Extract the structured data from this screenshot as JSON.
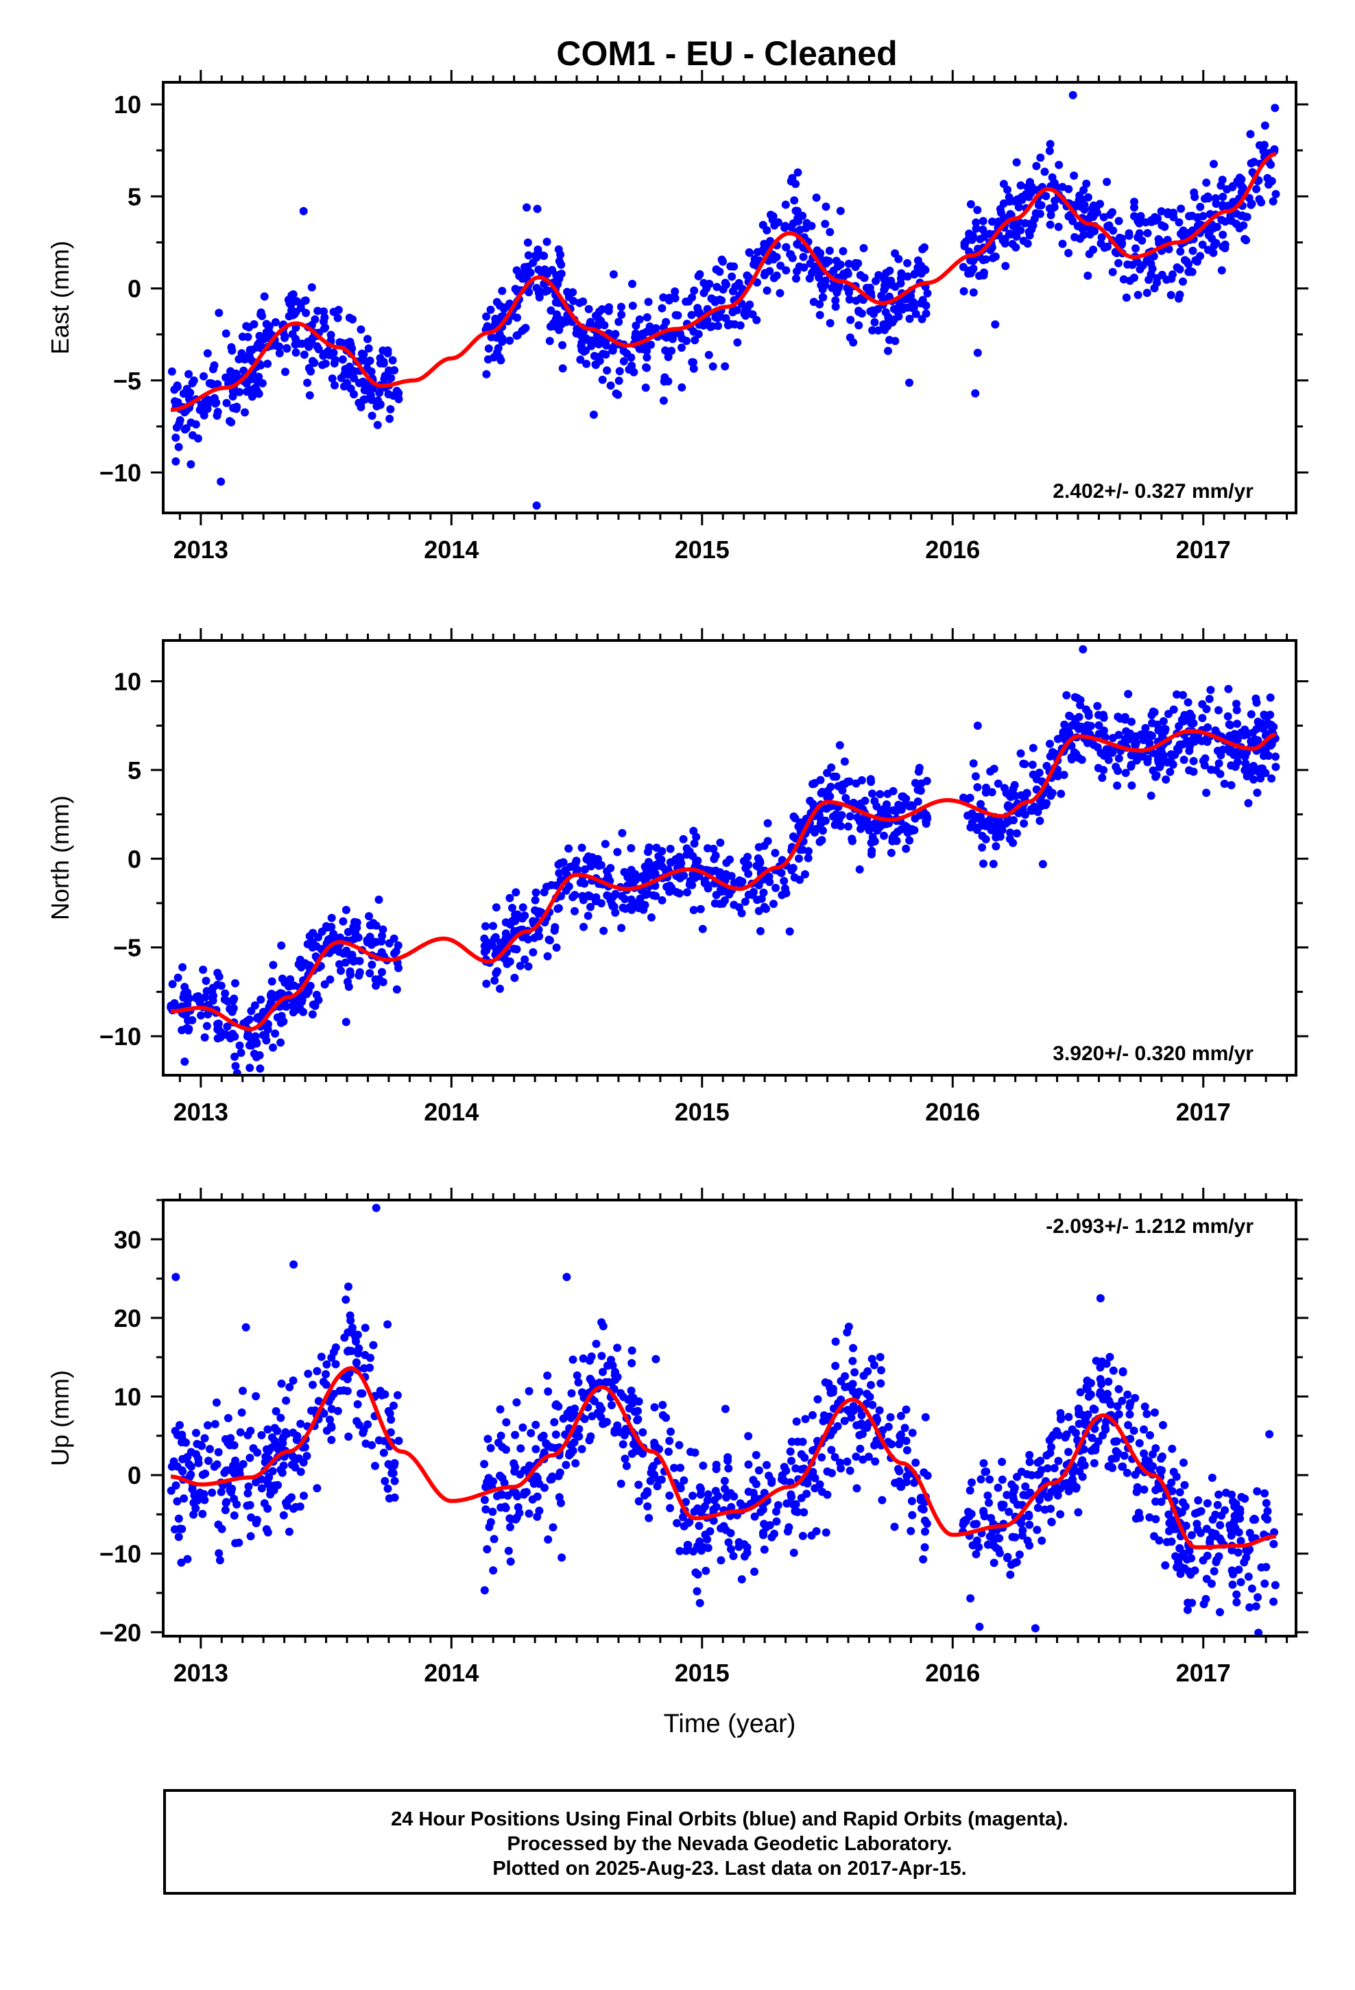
{
  "title": "COM1  - EU - Cleaned",
  "colors": {
    "final_orbits": "#0000ff",
    "model_fit": "#ff0000",
    "frame": "#000000"
  },
  "footer": {
    "line1": "24 Hour Positions Using Final Orbits (blue) and Rapid Orbits (magenta).",
    "line2": "Processed by the Nevada Geodetic Laboratory.",
    "line3": "Plotted on 2025-Aug-23. Last data on 2017-Apr-15."
  },
  "chart_data": [
    {
      "type": "scatter",
      "ylabel": "East (mm)",
      "xlabel": "",
      "rate_label": "2.402+/- 0.327 mm/yr",
      "rate_position": "bottom-right",
      "xlim": [
        2012.85,
        2017.37
      ],
      "ylim": [
        -12.2,
        11.2
      ],
      "xticks": [
        2013,
        2014,
        2015,
        2016,
        2017
      ],
      "yticks": [
        -10,
        -5,
        0,
        5,
        10
      ],
      "grid": false,
      "series": [
        {
          "kind": "points",
          "color": "#0000ff",
          "segments": [
            [
              2012.88,
              2013.79
            ],
            [
              2014.13,
              2015.9
            ],
            [
              2016.04,
              2017.29
            ]
          ],
          "trend": {
            "t0": 2012.88,
            "v0": -6.6,
            "rate": 2.402
          },
          "seasonal": {
            "amp_sin": -0.3,
            "amp_cos": -2.0,
            "amp_sin2": 0.3,
            "amp_cos2": 0.1
          },
          "noise_sd": 1.2,
          "count": 1350
        },
        {
          "kind": "fit",
          "color": "#ff0000",
          "knots": [
            [
              2012.88,
              -6.6
            ],
            [
              2013.1,
              -5.4
            ],
            [
              2013.38,
              -1.9
            ],
            [
              2013.55,
              -3.2
            ],
            [
              2013.72,
              -5.3
            ],
            [
              2013.85,
              -5.0
            ],
            [
              2014.0,
              -3.8
            ],
            [
              2014.15,
              -2.4
            ],
            [
              2014.35,
              0.6
            ],
            [
              2014.55,
              -2.2
            ],
            [
              2014.7,
              -3.1
            ],
            [
              2014.9,
              -2.2
            ],
            [
              2015.1,
              -1.0
            ],
            [
              2015.35,
              3.0
            ],
            [
              2015.55,
              0.4
            ],
            [
              2015.72,
              -0.8
            ],
            [
              2015.9,
              0.3
            ],
            [
              2016.08,
              1.8
            ],
            [
              2016.25,
              3.8
            ],
            [
              2016.38,
              5.4
            ],
            [
              2016.55,
              3.5
            ],
            [
              2016.72,
              1.7
            ],
            [
              2016.9,
              2.5
            ],
            [
              2017.1,
              4.2
            ],
            [
              2017.29,
              7.3
            ]
          ]
        },
        {
          "kind": "outliers",
          "color": "#0000ff",
          "points": [
            [
              2013.08,
              -10.5
            ],
            [
              2012.9,
              -9.4
            ],
            [
              2014.34,
              -11.8
            ],
            [
              2016.09,
              -5.7
            ],
            [
              2016.48,
              10.5
            ],
            [
              2016.1,
              -3.5
            ],
            [
              2014.3,
              4.4
            ],
            [
              2013.41,
              4.2
            ],
            [
              2015.36,
              6.0
            ]
          ]
        }
      ]
    },
    {
      "type": "scatter",
      "ylabel": "North (mm)",
      "xlabel": "",
      "rate_label": "3.920+/- 0.320 mm/yr",
      "rate_position": "bottom-right",
      "xlim": [
        2012.85,
        2017.37
      ],
      "ylim": [
        -12.2,
        12.3
      ],
      "xticks": [
        2013,
        2014,
        2015,
        2016,
        2017
      ],
      "yticks": [
        -10,
        -5,
        0,
        5,
        10
      ],
      "grid": false,
      "series": [
        {
          "kind": "points",
          "color": "#0000ff",
          "segments": [
            [
              2012.88,
              2013.79
            ],
            [
              2014.13,
              2015.9
            ],
            [
              2016.04,
              2017.29
            ]
          ],
          "trend": {
            "t0": 2012.88,
            "v0": -8.6,
            "rate": 3.92
          },
          "seasonal": {
            "amp_sin": 0.9,
            "amp_cos": -1.6,
            "amp_sin2": 0.2,
            "amp_cos2": 0.2
          },
          "noise_sd": 1.1,
          "count": 1350
        },
        {
          "kind": "fit",
          "color": "#ff0000",
          "knots": [
            [
              2012.88,
              -8.6
            ],
            [
              2013.0,
              -8.4
            ],
            [
              2013.2,
              -9.6
            ],
            [
              2013.35,
              -7.8
            ],
            [
              2013.55,
              -4.7
            ],
            [
              2013.75,
              -5.7
            ],
            [
              2013.97,
              -4.5
            ],
            [
              2014.15,
              -5.8
            ],
            [
              2014.3,
              -4.1
            ],
            [
              2014.5,
              -0.9
            ],
            [
              2014.7,
              -1.7
            ],
            [
              2014.95,
              -0.6
            ],
            [
              2015.15,
              -1.7
            ],
            [
              2015.3,
              -0.5
            ],
            [
              2015.5,
              3.2
            ],
            [
              2015.75,
              2.2
            ],
            [
              2015.98,
              3.3
            ],
            [
              2016.2,
              2.4
            ],
            [
              2016.3,
              3.2
            ],
            [
              2016.5,
              6.9
            ],
            [
              2016.75,
              6.1
            ],
            [
              2016.95,
              7.2
            ],
            [
              2017.2,
              6.2
            ],
            [
              2017.29,
              7.0
            ]
          ]
        },
        {
          "kind": "outliers",
          "color": "#0000ff",
          "points": [
            [
              2016.52,
              11.8
            ],
            [
              2016.1,
              7.5
            ],
            [
              2015.55,
              6.4
            ],
            [
              2015.35,
              -4.1
            ],
            [
              2013.58,
              -9.2
            ],
            [
              2016.36,
              -0.3
            ]
          ]
        }
      ]
    },
    {
      "type": "scatter",
      "ylabel": "Up (mm)",
      "xlabel": "Time (year)",
      "rate_label": "-2.093+/- 1.212 mm/yr",
      "rate_position": "top-right",
      "xlim": [
        2012.85,
        2017.37
      ],
      "ylim": [
        -20.5,
        35.0
      ],
      "xticks": [
        2013,
        2014,
        2015,
        2016,
        2017
      ],
      "yticks": [
        -20,
        -10,
        0,
        10,
        20,
        30
      ],
      "grid": false,
      "series": [
        {
          "kind": "points",
          "color": "#0000ff",
          "segments": [
            [
              2012.88,
              2013.79
            ],
            [
              2014.13,
              2015.9
            ],
            [
              2016.04,
              2017.29
            ]
          ],
          "trend": {
            "t0": 2012.88,
            "v0": 1.8,
            "rate": -2.093
          },
          "seasonal": {
            "amp_sin": -6.5,
            "amp_cos": -4.5,
            "amp_sin2": 0.8,
            "amp_cos2": 0.5
          },
          "noise_sd": 4.2,
          "count": 1350
        },
        {
          "kind": "fit",
          "color": "#ff0000",
          "knots": [
            [
              2012.88,
              -0.2
            ],
            [
              2013.0,
              -1.2
            ],
            [
              2013.2,
              -0.3
            ],
            [
              2013.35,
              3.0
            ],
            [
              2013.6,
              13.6
            ],
            [
              2013.8,
              3.0
            ],
            [
              2014.0,
              -3.3
            ],
            [
              2014.25,
              -1.5
            ],
            [
              2014.4,
              2.5
            ],
            [
              2014.6,
              11.2
            ],
            [
              2014.8,
              3.0
            ],
            [
              2014.97,
              -5.5
            ],
            [
              2015.15,
              -4.6
            ],
            [
              2015.35,
              -1.5
            ],
            [
              2015.6,
              9.6
            ],
            [
              2015.8,
              1.5
            ],
            [
              2016.0,
              -7.6
            ],
            [
              2016.2,
              -6.5
            ],
            [
              2016.4,
              -1.0
            ],
            [
              2016.6,
              7.6
            ],
            [
              2016.8,
              0.0
            ],
            [
              2016.97,
              -9.2
            ],
            [
              2017.15,
              -9.0
            ],
            [
              2017.29,
              -7.8
            ]
          ]
        },
        {
          "kind": "outliers",
          "color": "#0000ff",
          "points": [
            [
              2013.7,
              34.0
            ],
            [
              2013.37,
              26.8
            ],
            [
              2012.9,
              25.2
            ],
            [
              2014.46,
              25.2
            ],
            [
              2016.59,
              22.5
            ],
            [
              2016.33,
              -19.5
            ],
            [
              2014.44,
              -10.5
            ],
            [
              2013.18,
              18.8
            ]
          ]
        }
      ]
    }
  ]
}
